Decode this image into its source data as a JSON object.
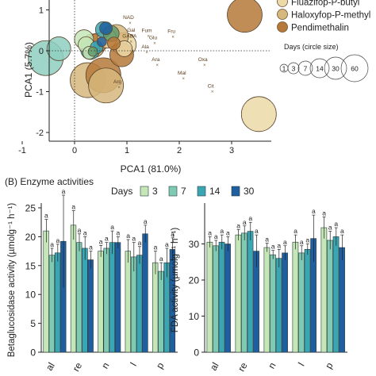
{
  "figure_section_b_label": "(B) Enzyme activities",
  "chart_data": [
    {
      "type": "scatter",
      "xlabel": "PCA1 (81.0%)",
      "ylabel": "PCA1 (5.7%)",
      "xlim": [
        -1.35,
        3.55
      ],
      "ylim": [
        -2.2,
        1.25
      ],
      "x_ticks": [
        "-1",
        "0",
        "1",
        "2",
        "3"
      ],
      "y_ticks": [
        "1",
        "0",
        "-1",
        "-2"
      ],
      "reference_lines": "dotted lines at x = 0 and y = 0",
      "legend": {
        "herbicides": [
          {
            "name": "Fluazifop-P-butyl",
            "color": "#ecd9a8"
          },
          {
            "name": "Haloxyfop-P-methyl",
            "color": "#d6b77c"
          },
          {
            "name": "Pendimethalin",
            "color": "#b6793a"
          }
        ],
        "days_title": "Days (circle size)",
        "days": [
          "1",
          "3",
          "7",
          "14",
          "30",
          "60"
        ]
      },
      "vectors": [
        {
          "label": "NAD",
          "x": 1.03,
          "y": 0.78,
          "color": "#5b3d1e"
        },
        {
          "label": "Gal",
          "x": 1.08,
          "y": 0.47,
          "color": "#5b3d1e"
        },
        {
          "label": "Fum",
          "x": 1.38,
          "y": 0.46,
          "color": "#5b3d1e"
        },
        {
          "label": "Fru",
          "x": 1.85,
          "y": 0.44,
          "color": "#5b3d1e"
        },
        {
          "label": "GABA",
          "x": 1.05,
          "y": 0.32,
          "color": "#5b3d1e"
        },
        {
          "label": "Glu",
          "x": 1.5,
          "y": 0.28,
          "color": "#5b3d1e"
        },
        {
          "label": "Ala",
          "x": 1.35,
          "y": 0.06,
          "color": "#5b3d1e"
        },
        {
          "label": "Ara",
          "x": 1.55,
          "y": -0.25,
          "color": "#5b3d1e"
        },
        {
          "label": "Oxa",
          "x": 2.45,
          "y": -0.25,
          "color": "#5b3d1e"
        },
        {
          "label": "Mal",
          "x": 2.05,
          "y": -0.58,
          "color": "#5b3d1e"
        },
        {
          "label": "Arg",
          "x": 0.82,
          "y": -0.8,
          "color": "#5b3d1e"
        },
        {
          "label": "Cit",
          "x": 2.6,
          "y": -0.9,
          "color": "#5b3d1e"
        }
      ],
      "points": [
        {
          "x": 3.25,
          "y": 0.88,
          "day": 60,
          "color": "#b6793a"
        },
        {
          "x": 3.52,
          "y": -1.55,
          "day": 60,
          "color": "#ecd9a8"
        },
        {
          "x": 0.25,
          "y": -0.72,
          "day": 60,
          "color": "#d6b77c"
        },
        {
          "x": 0.55,
          "y": -0.6,
          "day": 60,
          "color": "#b6793a"
        },
        {
          "x": 0.6,
          "y": -0.85,
          "day": 60,
          "color": "#d6b77c"
        },
        {
          "x": -0.55,
          "y": -0.18,
          "day": 60,
          "color": "#8fcfc0"
        },
        {
          "x": -0.3,
          "y": 0.05,
          "day": 30,
          "color": "#8fcfc0"
        },
        {
          "x": 0.95,
          "y": 0.15,
          "day": 30,
          "color": "#ecd9a8"
        },
        {
          "x": 0.35,
          "y": 0.12,
          "day": 30,
          "color": "#d6b77c"
        },
        {
          "x": 0.8,
          "y": 0.35,
          "day": 30,
          "color": "#d6b77c"
        },
        {
          "x": 0.9,
          "y": -0.1,
          "day": 30,
          "color": "#b6793a"
        },
        {
          "x": 0.45,
          "y": 0.2,
          "day": 14,
          "color": "#b6793a"
        },
        {
          "x": 0.62,
          "y": 0.3,
          "day": 14,
          "color": "#ecd9a8"
        },
        {
          "x": 0.3,
          "y": 0.02,
          "day": 14,
          "color": "#3aa6b4"
        },
        {
          "x": 0.18,
          "y": 0.28,
          "day": 14,
          "color": "#c5e6b7"
        },
        {
          "x": 0.55,
          "y": 0.52,
          "day": 7,
          "color": "#3aa6b4"
        },
        {
          "x": 0.7,
          "y": 0.42,
          "day": 7,
          "color": "#5f9a6c"
        },
        {
          "x": 0.22,
          "y": 0.15,
          "day": 7,
          "color": "#c5e6b7"
        },
        {
          "x": 0.95,
          "y": 0.05,
          "day": 7,
          "color": "#ecd9a8"
        },
        {
          "x": 0.6,
          "y": 0.55,
          "day": 3,
          "color": "#1f5fa0"
        },
        {
          "x": 0.42,
          "y": 0.08,
          "day": 3,
          "color": "#3aa6b4"
        },
        {
          "x": 0.28,
          "y": -0.05,
          "day": 3,
          "color": "#c5e6b7"
        },
        {
          "x": 0.75,
          "y": 0.18,
          "day": 3,
          "color": "#b6793a"
        },
        {
          "x": 0.52,
          "y": 0.22,
          "day": 1,
          "color": "#1f5fa0"
        },
        {
          "x": 0.35,
          "y": -0.02,
          "day": 1,
          "color": "#5f9a6c"
        }
      ]
    },
    {
      "type": "bar",
      "ylabel": "Betaglucosidase activity (µmolg⁻¹ h⁻¹)",
      "ylim": [
        0,
        25
      ],
      "y_ticks": [
        "0",
        "5",
        "10",
        "15",
        "20",
        "25"
      ],
      "categories": [
        "al",
        "re",
        "n",
        "l",
        "p"
      ],
      "legend_title": "Days",
      "series": [
        {
          "name": "3",
          "color": "#c5e6b7",
          "values": [
            21.0,
            22.0,
            17.5,
            17.5,
            15.5
          ],
          "errors": [
            2.0,
            2.5,
            1.0,
            2.0,
            2.0
          ],
          "labels": [
            "a",
            "a",
            "a",
            "a",
            "a"
          ]
        },
        {
          "name": "7",
          "color": "#7fcab3",
          "values": [
            16.8,
            19.0,
            18.0,
            16.5,
            14.0
          ],
          "errors": [
            1.2,
            1.5,
            1.0,
            2.5,
            1.5
          ],
          "labels": [
            "a",
            "a",
            "a",
            "a",
            "a"
          ]
        },
        {
          "name": "14",
          "color": "#3aa6b4",
          "values": [
            17.2,
            18.0,
            19.0,
            16.8,
            15.5
          ],
          "errors": [
            1.5,
            2.0,
            2.0,
            1.5,
            2.5
          ],
          "labels": [
            "a",
            "a",
            "a",
            "a",
            "a"
          ]
        },
        {
          "name": "30",
          "color": "#1f5fa0",
          "values": [
            19.2,
            16.0,
            19.0,
            20.5,
            17.8
          ],
          "errors": [
            8.0,
            1.5,
            1.0,
            1.5,
            2.0
          ],
          "labels": [
            "a",
            "a",
            "a",
            "a",
            "a"
          ]
        }
      ]
    },
    {
      "type": "bar",
      "ylabel": "FDA activity (µmolg⁻¹ h⁻¹)",
      "ylim": [
        0,
        40
      ],
      "y_ticks": [
        "0",
        "10",
        "20",
        "30"
      ],
      "categories": [
        "al",
        "re",
        "n",
        "l",
        "p"
      ],
      "series": [
        {
          "name": "3",
          "color": "#c5e6b7",
          "values": [
            30.5,
            32.5,
            29.0,
            30.5,
            34.5
          ],
          "errors": [
            1.5,
            1.5,
            1.2,
            2.0,
            3.0
          ],
          "labels": [
            "a",
            "a",
            "a",
            "a",
            "a"
          ]
        },
        {
          "name": "7",
          "color": "#7fcab3",
          "values": [
            29.5,
            33.0,
            27.0,
            27.5,
            31.0
          ],
          "errors": [
            1.5,
            2.0,
            1.2,
            2.0,
            2.5
          ],
          "labels": [
            "a",
            "a",
            "a",
            "a",
            "a"
          ]
        },
        {
          "name": "14",
          "color": "#3aa6b4",
          "values": [
            30.5,
            33.5,
            26.0,
            28.5,
            32.0
          ],
          "errors": [
            2.0,
            2.5,
            2.5,
            1.5,
            2.5
          ],
          "labels": [
            "a",
            "a",
            "a",
            "a",
            "a"
          ]
        },
        {
          "name": "30",
          "color": "#1f5fa0",
          "values": [
            30.0,
            28.0,
            27.5,
            31.5,
            29.0
          ],
          "errors": [
            2.0,
            4.5,
            2.0,
            6.5,
            3.5
          ],
          "labels": [
            "a",
            "a",
            "a",
            "a",
            "a"
          ]
        }
      ]
    }
  ]
}
